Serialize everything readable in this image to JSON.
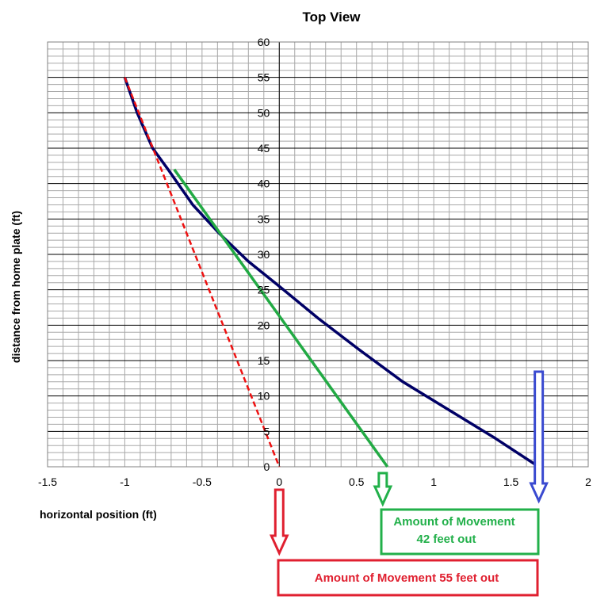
{
  "chart_data": {
    "type": "line",
    "title": "Top View",
    "xlabel": "horizontal position (ft)",
    "ylabel": "distance from home plate (ft)",
    "xlim": [
      -1.5,
      2
    ],
    "ylim": [
      0,
      60
    ],
    "xticks": [
      "-1.5",
      "-1",
      "-0.5",
      "0",
      "0.5",
      "1",
      "1.5",
      "2"
    ],
    "yticks": [
      "0",
      "5",
      "10",
      "15",
      "20",
      "25",
      "30",
      "35",
      "40",
      "45",
      "50",
      "55",
      "60"
    ],
    "grid": true,
    "series": [
      {
        "color": "#000066",
        "style": "solid",
        "points": [
          {
            "x": -1.0,
            "y": 55
          },
          {
            "x": -0.92,
            "y": 50
          },
          {
            "x": -0.82,
            "y": 45
          },
          {
            "x": -0.72,
            "y": 42
          },
          {
            "x": -0.56,
            "y": 37
          },
          {
            "x": -0.39,
            "y": 33
          },
          {
            "x": -0.2,
            "y": 29
          },
          {
            "x": 0.0,
            "y": 25.5
          },
          {
            "x": 0.25,
            "y": 21
          },
          {
            "x": 0.52,
            "y": 16.5
          },
          {
            "x": 0.8,
            "y": 12
          },
          {
            "x": 1.1,
            "y": 8
          },
          {
            "x": 1.4,
            "y": 4
          },
          {
            "x": 1.68,
            "y": 0
          }
        ]
      },
      {
        "color": "#22aa44",
        "style": "solid",
        "points": [
          {
            "x": -0.68,
            "y": 42
          },
          {
            "x": 0.7,
            "y": 0
          }
        ]
      },
      {
        "color": "#ee1111",
        "style": "dashed",
        "points": [
          {
            "x": -1.0,
            "y": 55
          },
          {
            "x": 0.0,
            "y": 0
          }
        ]
      }
    ],
    "annotations": [
      {
        "text": "Amount of Movement 55 feet out",
        "color": "#e02030"
      },
      {
        "text": "Amount of Movement",
        "text2": "42 feet out",
        "color": "#22b04a"
      }
    ],
    "arrows": [
      {
        "color": "#e02030",
        "x": 0.0
      },
      {
        "color": "#22b04a",
        "x": 0.67
      },
      {
        "color": "#3a4ad0",
        "x": 1.68
      }
    ]
  }
}
